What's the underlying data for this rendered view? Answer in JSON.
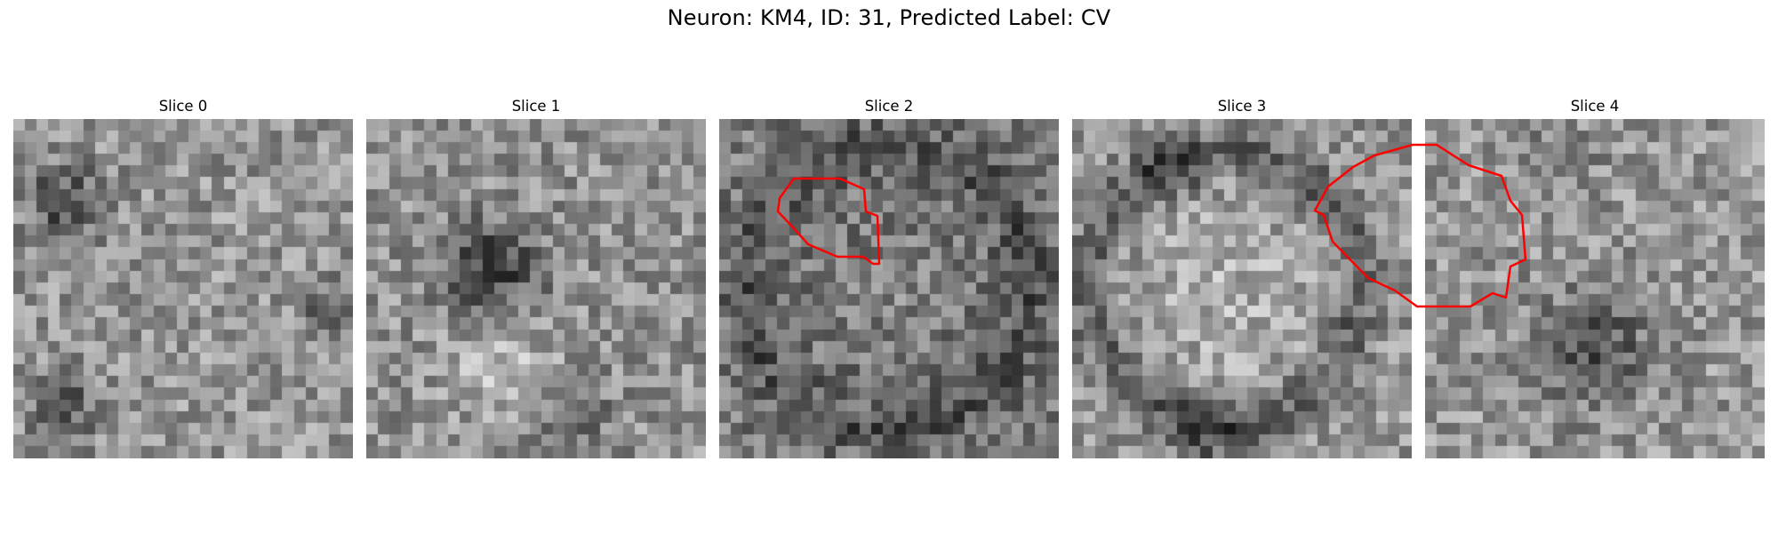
{
  "figure": {
    "title": "Neuron: KM4, ID: 31, Predicted Label: CV",
    "contour_color": "#ff0000"
  },
  "panels": [
    {
      "title": "Slice 0",
      "has_contour": false,
      "contour": []
    },
    {
      "title": "Slice 1",
      "has_contour": true,
      "contour": [
        [
          496,
          201
        ],
        [
          548,
          201
        ],
        [
          575,
          213
        ],
        [
          577,
          238
        ],
        [
          590,
          243
        ],
        [
          592,
          297
        ],
        [
          585,
          297
        ],
        [
          574,
          289
        ],
        [
          545,
          289
        ],
        [
          512,
          275
        ],
        [
          495,
          256
        ],
        [
          478,
          238
        ],
        [
          480,
          223
        ]
      ]
    },
    {
      "title": "Slice 2",
      "has_contour": true,
      "contour": [
        [
          795,
          163
        ],
        [
          822,
          163
        ],
        [
          858,
          186
        ],
        [
          895,
          198
        ],
        [
          905,
          226
        ],
        [
          918,
          242
        ],
        [
          922,
          292
        ],
        [
          905,
          300
        ],
        [
          900,
          335
        ],
        [
          885,
          330
        ],
        [
          860,
          345
        ],
        [
          800,
          345
        ],
        [
          775,
          327
        ],
        [
          745,
          313
        ],
        [
          705,
          272
        ],
        [
          695,
          242
        ],
        [
          685,
          237
        ],
        [
          700,
          210
        ],
        [
          728,
          188
        ],
        [
          752,
          175
        ]
      ]
    },
    {
      "title": "Slice 3",
      "has_contour": true,
      "contour": [
        [
          1055,
          173
        ],
        [
          1125,
          173
        ],
        [
          1138,
          181
        ],
        [
          1160,
          183
        ],
        [
          1185,
          195
        ],
        [
          1210,
          202
        ],
        [
          1216,
          206
        ],
        [
          1216,
          313
        ],
        [
          1200,
          318
        ],
        [
          1172,
          336
        ],
        [
          1075,
          336
        ],
        [
          1040,
          318
        ],
        [
          1015,
          305
        ],
        [
          995,
          285
        ],
        [
          985,
          262
        ],
        [
          978,
          236
        ],
        [
          975,
          227
        ],
        [
          998,
          202
        ],
        [
          1020,
          186
        ]
      ]
    },
    {
      "title": "Slice 4",
      "has_contour": true,
      "contour": [
        [
          1338,
          192
        ],
        [
          1408,
          192
        ],
        [
          1420,
          200
        ],
        [
          1438,
          203
        ],
        [
          1465,
          218
        ],
        [
          1478,
          223
        ],
        [
          1488,
          238
        ],
        [
          1488,
          282
        ],
        [
          1478,
          292
        ],
        [
          1475,
          302
        ],
        [
          1460,
          310
        ],
        [
          1458,
          318
        ],
        [
          1338,
          318
        ],
        [
          1310,
          298
        ],
        [
          1300,
          288
        ],
        [
          1285,
          275
        ],
        [
          1278,
          255
        ],
        [
          1278,
          225
        ],
        [
          1290,
          214
        ],
        [
          1320,
          200
        ]
      ]
    }
  ]
}
